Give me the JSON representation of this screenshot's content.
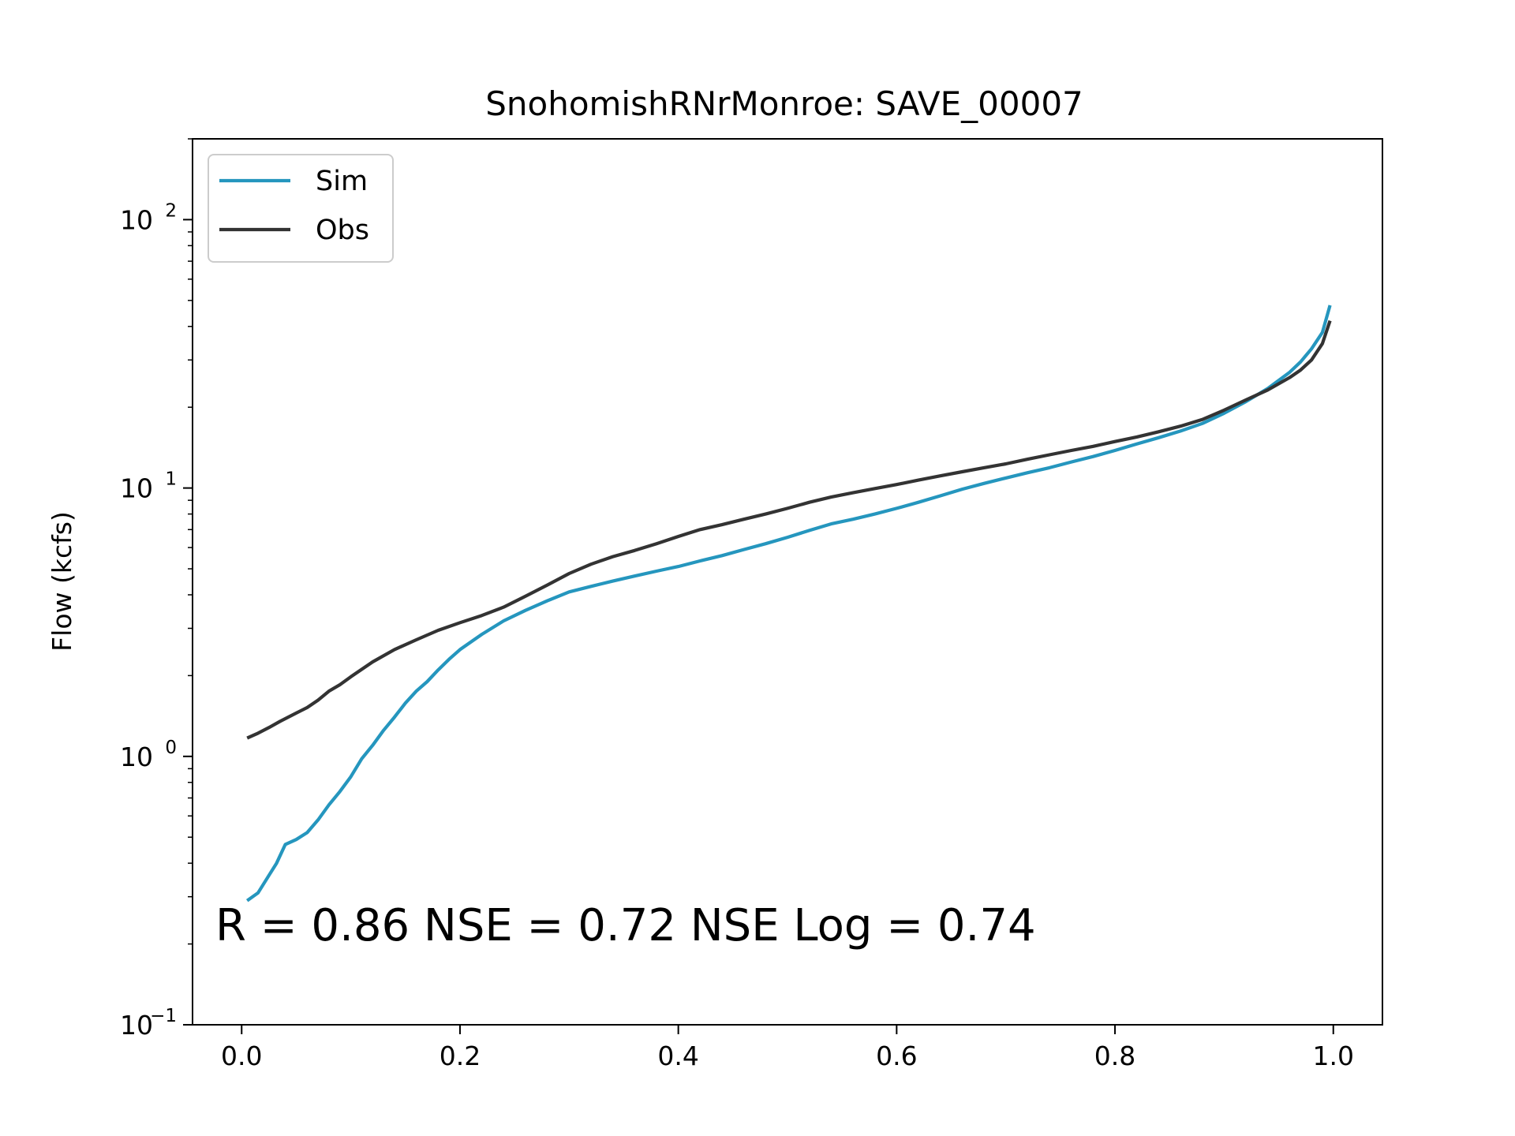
{
  "chart_data": {
    "type": "line",
    "title": "SnohomishRNrMonroe: SAVE_00007",
    "xlabel": "",
    "ylabel": "Flow (kcfs)",
    "xlim": [
      -0.045,
      1.045
    ],
    "ylim": [
      0.1,
      200
    ],
    "yscale": "log",
    "grid": false,
    "legend_position": "upper-left",
    "x_ticks": [
      "0.0",
      "0.2",
      "0.4",
      "0.6",
      "0.8",
      "1.0"
    ],
    "y_ticks": [
      {
        "base": "10",
        "exp": "−1"
      },
      {
        "base": "10",
        "exp": "0"
      },
      {
        "base": "10",
        "exp": "1"
      },
      {
        "base": "10",
        "exp": "2"
      }
    ],
    "annotation": "R = 0.86  NSE = 0.72  NSE Log = 0.74",
    "series": [
      {
        "name": "Sim",
        "color": "#2596be",
        "points": [
          [
            0.005,
            0.29
          ],
          [
            0.015,
            0.31
          ],
          [
            0.025,
            0.36
          ],
          [
            0.032,
            0.4
          ],
          [
            0.04,
            0.47
          ],
          [
            0.05,
            0.49
          ],
          [
            0.06,
            0.52
          ],
          [
            0.07,
            0.58
          ],
          [
            0.08,
            0.66
          ],
          [
            0.09,
            0.74
          ],
          [
            0.1,
            0.84
          ],
          [
            0.11,
            0.98
          ],
          [
            0.12,
            1.1
          ],
          [
            0.13,
            1.25
          ],
          [
            0.14,
            1.4
          ],
          [
            0.15,
            1.58
          ],
          [
            0.16,
            1.75
          ],
          [
            0.17,
            1.9
          ],
          [
            0.18,
            2.1
          ],
          [
            0.19,
            2.3
          ],
          [
            0.2,
            2.5
          ],
          [
            0.22,
            2.85
          ],
          [
            0.24,
            3.2
          ],
          [
            0.26,
            3.5
          ],
          [
            0.28,
            3.8
          ],
          [
            0.3,
            4.1
          ],
          [
            0.32,
            4.3
          ],
          [
            0.34,
            4.5
          ],
          [
            0.36,
            4.7
          ],
          [
            0.38,
            4.9
          ],
          [
            0.4,
            5.1
          ],
          [
            0.42,
            5.35
          ],
          [
            0.44,
            5.6
          ],
          [
            0.46,
            5.9
          ],
          [
            0.48,
            6.2
          ],
          [
            0.5,
            6.55
          ],
          [
            0.52,
            6.95
          ],
          [
            0.54,
            7.35
          ],
          [
            0.56,
            7.65
          ],
          [
            0.58,
            8.0
          ],
          [
            0.6,
            8.4
          ],
          [
            0.62,
            8.85
          ],
          [
            0.64,
            9.35
          ],
          [
            0.66,
            9.9
          ],
          [
            0.68,
            10.4
          ],
          [
            0.7,
            10.9
          ],
          [
            0.72,
            11.4
          ],
          [
            0.74,
            11.9
          ],
          [
            0.76,
            12.5
          ],
          [
            0.78,
            13.1
          ],
          [
            0.8,
            13.8
          ],
          [
            0.82,
            14.6
          ],
          [
            0.84,
            15.4
          ],
          [
            0.86,
            16.3
          ],
          [
            0.88,
            17.4
          ],
          [
            0.9,
            19.0
          ],
          [
            0.92,
            21.0
          ],
          [
            0.94,
            23.5
          ],
          [
            0.96,
            27.0
          ],
          [
            0.97,
            29.5
          ],
          [
            0.98,
            33.0
          ],
          [
            0.99,
            38.0
          ],
          [
            0.997,
            48.0
          ]
        ]
      },
      {
        "name": "Obs",
        "color": "#333333",
        "points": [
          [
            0.005,
            1.17
          ],
          [
            0.015,
            1.22
          ],
          [
            0.025,
            1.28
          ],
          [
            0.035,
            1.35
          ],
          [
            0.05,
            1.45
          ],
          [
            0.06,
            1.52
          ],
          [
            0.07,
            1.62
          ],
          [
            0.08,
            1.75
          ],
          [
            0.09,
            1.85
          ],
          [
            0.1,
            1.98
          ],
          [
            0.12,
            2.25
          ],
          [
            0.14,
            2.5
          ],
          [
            0.16,
            2.72
          ],
          [
            0.18,
            2.95
          ],
          [
            0.2,
            3.15
          ],
          [
            0.22,
            3.35
          ],
          [
            0.24,
            3.6
          ],
          [
            0.26,
            3.95
          ],
          [
            0.28,
            4.35
          ],
          [
            0.3,
            4.8
          ],
          [
            0.32,
            5.2
          ],
          [
            0.34,
            5.55
          ],
          [
            0.36,
            5.85
          ],
          [
            0.38,
            6.2
          ],
          [
            0.4,
            6.6
          ],
          [
            0.42,
            7.0
          ],
          [
            0.44,
            7.3
          ],
          [
            0.46,
            7.65
          ],
          [
            0.48,
            8.0
          ],
          [
            0.5,
            8.4
          ],
          [
            0.52,
            8.85
          ],
          [
            0.54,
            9.25
          ],
          [
            0.56,
            9.6
          ],
          [
            0.58,
            9.95
          ],
          [
            0.6,
            10.3
          ],
          [
            0.62,
            10.7
          ],
          [
            0.64,
            11.1
          ],
          [
            0.66,
            11.5
          ],
          [
            0.68,
            11.9
          ],
          [
            0.7,
            12.3
          ],
          [
            0.72,
            12.8
          ],
          [
            0.74,
            13.3
          ],
          [
            0.76,
            13.8
          ],
          [
            0.78,
            14.3
          ],
          [
            0.8,
            14.9
          ],
          [
            0.82,
            15.5
          ],
          [
            0.84,
            16.2
          ],
          [
            0.86,
            17.0
          ],
          [
            0.88,
            18.0
          ],
          [
            0.9,
            19.5
          ],
          [
            0.92,
            21.3
          ],
          [
            0.94,
            23.2
          ],
          [
            0.96,
            25.8
          ],
          [
            0.97,
            27.5
          ],
          [
            0.98,
            30.0
          ],
          [
            0.99,
            34.5
          ],
          [
            0.997,
            42.0
          ]
        ]
      }
    ]
  }
}
